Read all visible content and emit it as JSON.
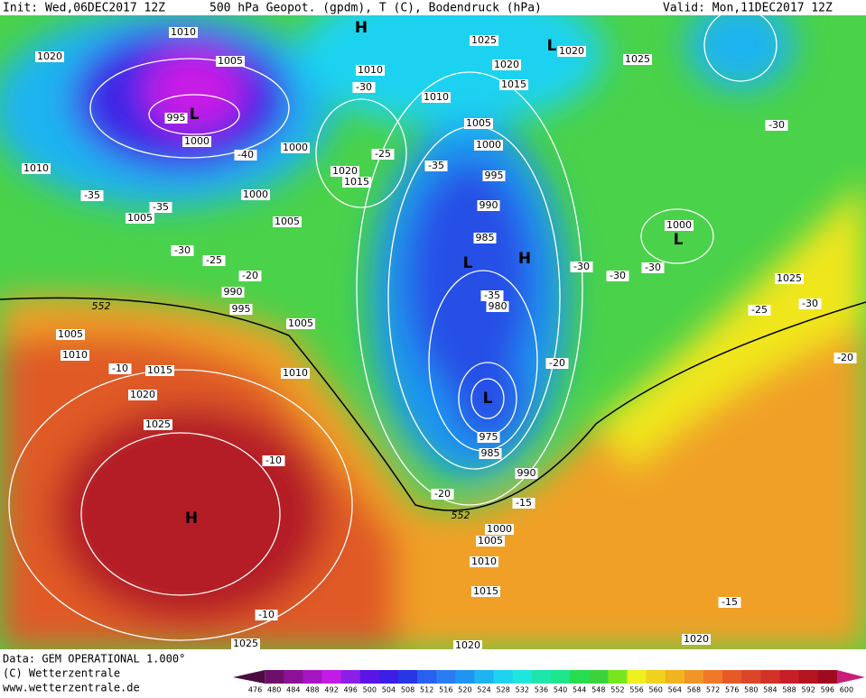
{
  "header": {
    "init": "Init: Wed,06DEC2017 12Z",
    "parameters": "500 hPa Geopot. (gpdm), T (C), Bodendruck (hPa)",
    "valid": "Valid: Mon,11DEC2017 12Z"
  },
  "footer": {
    "data": "Data: GEM OPERATIONAL 1.000°",
    "copyright": "(C) Wetterzentrale",
    "website": "www.wetterzentrale.de"
  },
  "colorbar": {
    "values": [
      476,
      480,
      484,
      488,
      492,
      496,
      500,
      504,
      508,
      512,
      516,
      520,
      524,
      528,
      532,
      536,
      540,
      544,
      548,
      552,
      556,
      560,
      564,
      568,
      572,
      576,
      580,
      584,
      588,
      592,
      596,
      600
    ],
    "colors": [
      "#4b0c3f",
      "#6d0f6b",
      "#8b1296",
      "#a516c2",
      "#c21be6",
      "#8c1ee8",
      "#5a14e6",
      "#3c1ee6",
      "#2836e6",
      "#2860f0",
      "#2a7cf0",
      "#1e96f0",
      "#1eb4f0",
      "#1ed2f0",
      "#1ee6dc",
      "#1ee6aa",
      "#1ee68c",
      "#28dc50",
      "#3cd23c",
      "#78e61e",
      "#f0f01e",
      "#f0d21e",
      "#f0b41e",
      "#f09628",
      "#f07828",
      "#e65a28",
      "#dc4628",
      "#d23228",
      "#c81e28",
      "#b4141e",
      "#a00a1e",
      "#c81e78"
    ]
  },
  "pressure_labels": [
    1010,
    1020,
    1005,
    995,
    1000,
    1010,
    1005,
    1000,
    1005,
    1000,
    1010,
    1010,
    1020,
    1015,
    1025,
    1020,
    1015,
    1005,
    1000,
    995,
    990,
    985,
    980,
    975,
    985,
    990,
    1000,
    1005,
    1010,
    1015,
    1020,
    1020,
    1025,
    1020,
    1000,
    1025,
    1005,
    1010,
    1015,
    1020,
    1025,
    1025,
    1010,
    1005,
    990,
    995
  ],
  "temperature_labels": [
    -40,
    -35,
    -35,
    -30,
    -25,
    -20,
    -30,
    -25,
    -35,
    -35,
    -30,
    -30,
    -30,
    -30,
    -25,
    -30,
    -20,
    -20,
    -10,
    -10,
    -10,
    -15,
    -15,
    -20
  ],
  "height_labels": [
    552,
    552
  ],
  "centers": [
    "L",
    "L",
    "H",
    "L",
    "H",
    "L",
    "L",
    "H"
  ]
}
